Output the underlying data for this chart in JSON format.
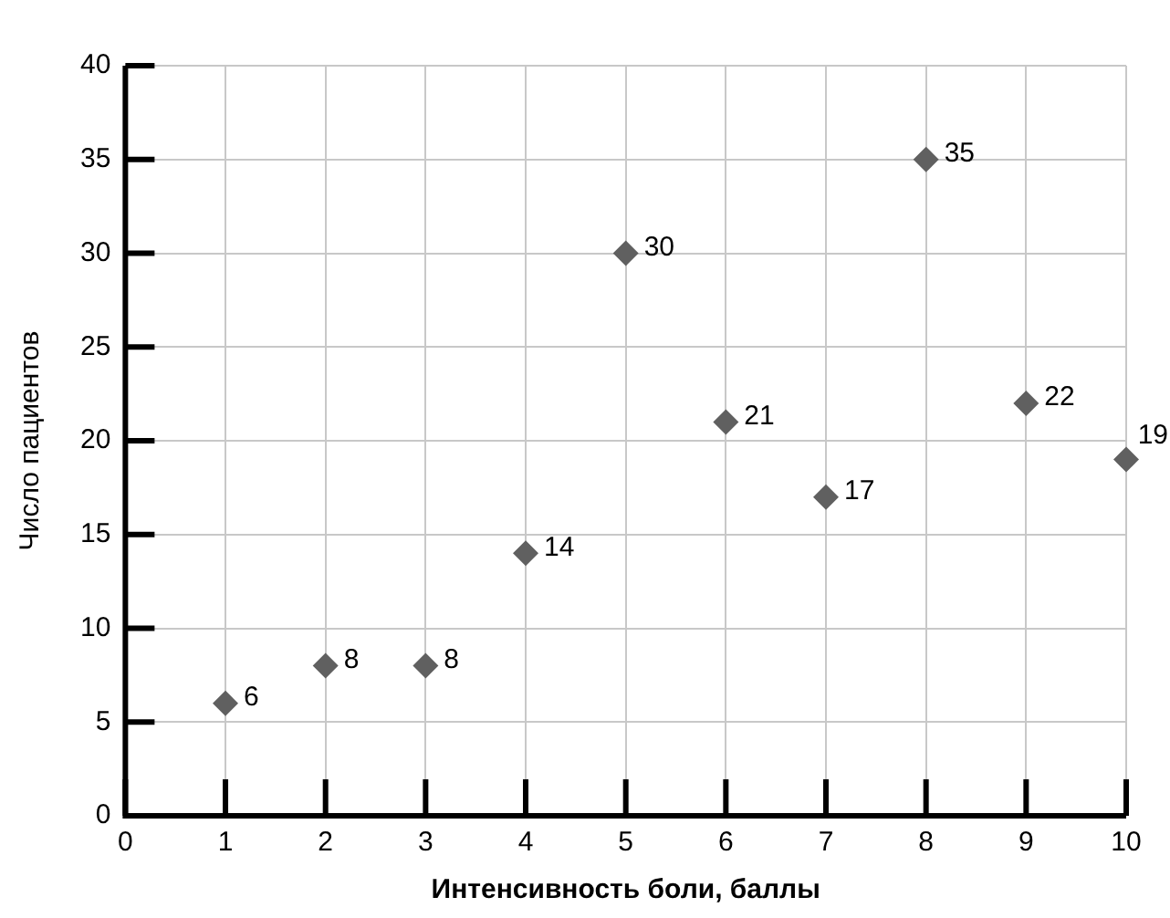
{
  "chart_data": {
    "type": "scatter",
    "xlabel": "Интенсивность боли, баллы",
    "ylabel": "Число пациентов",
    "x": [
      1,
      2,
      3,
      4,
      5,
      6,
      7,
      8,
      9,
      10
    ],
    "series": [
      {
        "color": "#606060",
        "values": [
          6,
          8,
          8,
          14,
          30,
          21,
          17,
          35,
          22,
          19
        ]
      }
    ],
    "xlim": [
      0,
      10
    ],
    "xticks": [
      0,
      1,
      2,
      3,
      4,
      5,
      6,
      7,
      8,
      9,
      10
    ],
    "ylim": [
      0,
      40
    ],
    "yticks": [
      0,
      5,
      10,
      15,
      20,
      25,
      30,
      35,
      40
    ],
    "grid": true,
    "legend": false,
    "marker": "diamond",
    "data_labels": true
  }
}
